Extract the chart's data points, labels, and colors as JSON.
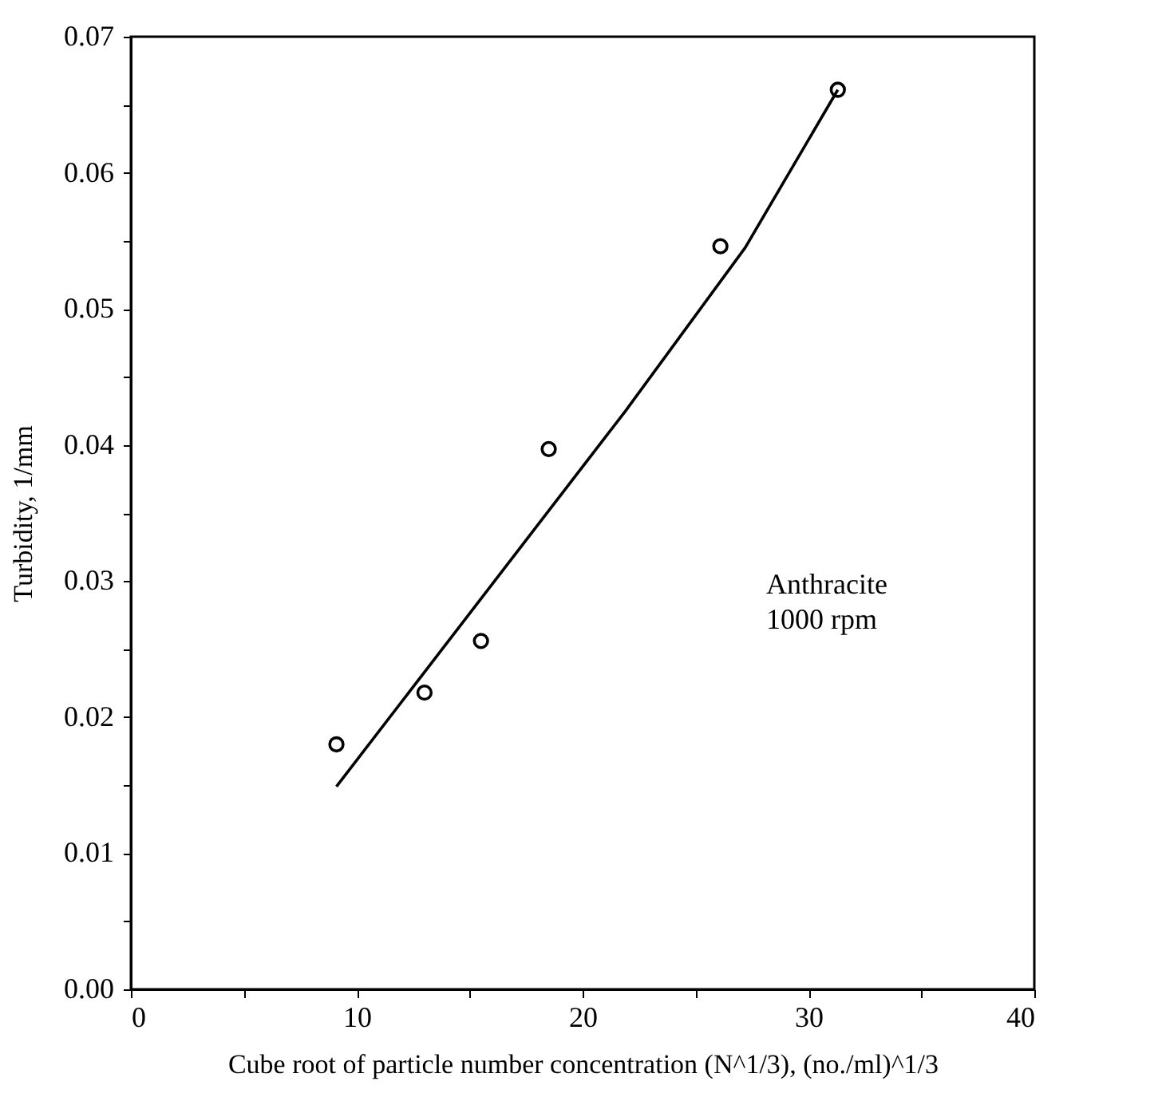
{
  "chart_data": {
    "type": "scatter",
    "xlabel": "Cube root of particle number concentration (N^1/3), (no./ml)^1/3",
    "ylabel": "Turbidity, 1/mm",
    "series": [
      {
        "color": "#000000",
        "marker": "circle",
        "x": [
          9.1,
          13.0,
          15.5,
          18.5,
          26.1,
          31.3
        ],
        "values": [
          0.018,
          0.0218,
          0.0256,
          0.0397,
          0.0546,
          0.0661
        ]
      },
      {
        "type": "line",
        "color": "#000000",
        "line_style": "solid",
        "x": [
          9.1,
          21.9,
          27.2,
          31.3
        ],
        "values": [
          0.0149,
          0.0425,
          0.0545,
          0.0661
        ]
      }
    ],
    "annotations": [
      "Anthracite\n1000 rpm"
    ],
    "xlim": [
      0,
      40
    ],
    "xticks": [
      0,
      {
        "value": 5,
        "label": null
      },
      10,
      {
        "value": 15,
        "label": null
      },
      20,
      {
        "value": 25,
        "label": null
      },
      30,
      {
        "value": 35,
        "label": null
      },
      40
    ],
    "ylim": [
      0,
      0.07
    ],
    "yticks": [
      "0.00",
      {
        "value": 0.005,
        "label": null
      },
      0.01,
      {
        "value": 0.015,
        "label": null
      },
      0.02,
      {
        "value": 0.025,
        "label": null
      },
      0.03,
      {
        "value": 0.035,
        "label": null
      },
      0.04,
      {
        "value": 0.045,
        "label": null
      },
      0.05,
      {
        "value": 0.055,
        "label": null
      },
      0.06,
      {
        "value": 0.065,
        "label": null
      },
      0.07
    ],
    "grid": false
  }
}
